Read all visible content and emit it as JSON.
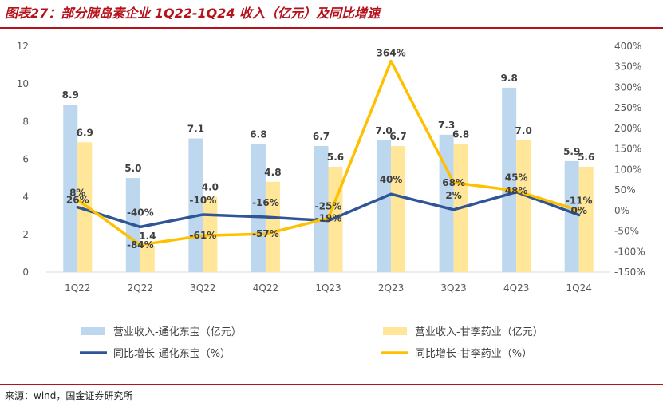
{
  "figure_title": "图表27：部分胰岛素企业 1Q22-1Q24 收入（亿元）及同比增速",
  "source": "来源：wind，国金证券研究所",
  "colors": {
    "title": "#b5121b",
    "bar_thdb": "#bdd7ee",
    "bar_gly": "#ffe699",
    "line_thdb": "#2f5597",
    "line_gly": "#ffc000"
  },
  "chart_data": {
    "type": "bar",
    "categories": [
      "1Q22",
      "2Q22",
      "3Q22",
      "4Q22",
      "1Q23",
      "2Q23",
      "3Q23",
      "4Q23",
      "1Q24"
    ],
    "ylim": [
      0,
      12
    ],
    "yticks": [
      "0",
      "2",
      "4",
      "6",
      "8",
      "10",
      "12"
    ],
    "y2lim": [
      -150,
      400
    ],
    "y2ticks": [
      "-150%",
      "-100%",
      "-50%",
      "0%",
      "50%",
      "100%",
      "150%",
      "200%",
      "250%",
      "300%",
      "350%",
      "400%"
    ],
    "grid": false,
    "legend_position": "bottom",
    "series": [
      {
        "name": "营业收入-通化东宝（亿元）",
        "type": "bar",
        "axis": "left",
        "values": [
          8.9,
          5.0,
          7.1,
          6.8,
          6.7,
          7.0,
          7.3,
          9.8,
          5.9
        ],
        "labels": [
          "8.9",
          "5.0",
          "7.1",
          "6.8",
          "6.7",
          "7.0",
          "7.3",
          "9.8",
          "5.9"
        ]
      },
      {
        "name": "营业收入-甘李药业（亿元）",
        "type": "bar",
        "axis": "left",
        "values": [
          6.9,
          1.4,
          4.0,
          4.8,
          5.6,
          6.7,
          6.8,
          7.0,
          5.6
        ],
        "labels": [
          "6.9",
          "1.4",
          "4.0",
          "4.8",
          "5.6",
          "6.7",
          "6.8",
          "7.0",
          "5.6"
        ]
      },
      {
        "name": "同比增长-通化东宝（%）",
        "type": "line",
        "axis": "right",
        "values": [
          8,
          -40,
          -10,
          -16,
          -25,
          40,
          2,
          45,
          -11
        ],
        "labels": [
          "8%",
          "-40%",
          "-10%",
          "-16%",
          "-25%",
          "40%",
          "2%",
          "45%",
          "-11%"
        ]
      },
      {
        "name": "同比增长-甘李药业（%）",
        "type": "line",
        "axis": "right",
        "values": [
          26,
          -84,
          -61,
          -57,
          -19,
          364,
          68,
          48,
          0
        ],
        "labels": [
          "26%",
          "-84%",
          "-61%",
          "-57%",
          "-19%",
          "364%",
          "68%",
          "48%",
          "0%"
        ]
      }
    ]
  }
}
